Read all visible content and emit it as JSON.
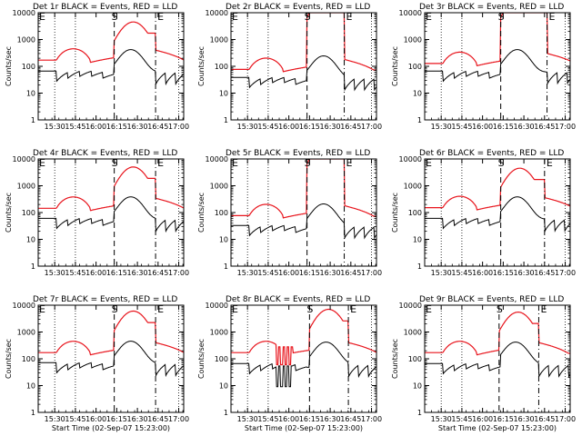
{
  "chart_data": {
    "type": "line",
    "ylabel": "Counts/sec",
    "xlabel": "Start Time (02-Sep-07 15:23:00)",
    "yscale": "log",
    "ylim": [
      1,
      10000
    ],
    "yticks": [
      "1",
      "10",
      "100",
      "1000",
      "10000"
    ],
    "xlim": [
      15.3,
      17.06
    ],
    "xticks": [
      "15:30",
      "15:45",
      "16:00",
      "16:15",
      "16:30",
      "16:45",
      "17:00"
    ],
    "grid": "dotted vertical lines at 15:30, 15:45, 17:00",
    "markers": [
      {
        "label": "S",
        "style": "dashed"
      },
      {
        "label": "E",
        "style": "dash-dot"
      }
    ],
    "colors": {
      "events": "#000000",
      "lld": "#e8141c"
    },
    "panels": [
      {
        "title": "Det 1r BLACK = Events, RED = LLD",
        "show_xlabel": false,
        "s_time": 16.22,
        "e_time": 16.72,
        "events_level": 60,
        "lld_level": 200,
        "flare_peak": 4500,
        "spikes": false
      },
      {
        "title": "Det 2r BLACK = Events, RED = LLD",
        "show_xlabel": false,
        "s_time": 16.22,
        "e_time": 16.67,
        "events_level": 35,
        "lld_level": 90,
        "flare_peak": 40000,
        "spikes": false
      },
      {
        "title": "Det 3r BLACK = Events, RED = LLD",
        "show_xlabel": false,
        "s_time": 16.22,
        "e_time": 16.78,
        "events_level": 60,
        "lld_level": 150,
        "flare_peak": 40000,
        "spikes": false
      },
      {
        "title": "Det 4r BLACK = Events, RED = LLD",
        "show_xlabel": false,
        "s_time": 16.22,
        "e_time": 16.72,
        "events_level": 55,
        "lld_level": 170,
        "flare_peak": 5000,
        "spikes": false
      },
      {
        "title": "Det 5r BLACK = Events, RED = LLD",
        "show_xlabel": false,
        "s_time": 16.22,
        "e_time": 16.67,
        "events_level": 30,
        "lld_level": 90,
        "flare_peak": 40000,
        "spikes": false
      },
      {
        "title": "Det 6r BLACK = Events, RED = LLD",
        "show_xlabel": false,
        "s_time": 16.22,
        "e_time": 16.75,
        "events_level": 55,
        "lld_level": 180,
        "flare_peak": 4500,
        "spikes": false
      },
      {
        "title": "Det 7r BLACK = Events, RED = LLD",
        "show_xlabel": true,
        "s_time": 16.22,
        "e_time": 16.72,
        "events_level": 65,
        "lld_level": 200,
        "flare_peak": 6000,
        "spikes": false
      },
      {
        "title": "Det 8r BLACK = Events, RED = LLD",
        "show_xlabel": true,
        "s_time": 16.25,
        "e_time": 16.72,
        "events_level": 60,
        "lld_level": 200,
        "flare_peak": 7000,
        "spikes": true
      },
      {
        "title": "Det 9r BLACK = Events, RED = LLD",
        "show_xlabel": true,
        "s_time": 16.2,
        "e_time": 16.68,
        "events_level": 60,
        "lld_level": 200,
        "flare_peak": 5500,
        "spikes": false
      }
    ]
  }
}
